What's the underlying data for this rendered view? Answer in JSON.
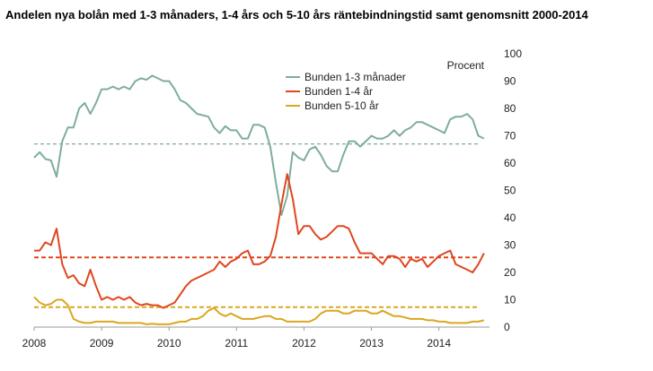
{
  "chart_data": {
    "type": "line",
    "title": "Andelen nya bolån med 1-3 månaders, 1-4 års och 5-10 års räntebindningstid samt genomsnitt 2000-2014",
    "ylabel": "Procent",
    "xlabel": "",
    "ylim": [
      0,
      100
    ],
    "yticks": [
      "0",
      "10",
      "20",
      "30",
      "40",
      "50",
      "60",
      "70",
      "80",
      "90",
      "100"
    ],
    "xlim": [
      2008.0,
      2014.75
    ],
    "xticks": [
      "2008",
      "2009",
      "2010",
      "2011",
      "2012",
      "2013",
      "2014"
    ],
    "grid": false,
    "legend_position": "top-center",
    "series": [
      {
        "name": "Bunden 1-3 månader",
        "color": "#7fad9d",
        "average": 67,
        "x": [
          2008.0,
          2008.083,
          2008.167,
          2008.25,
          2008.333,
          2008.417,
          2008.5,
          2008.583,
          2008.667,
          2008.75,
          2008.833,
          2008.917,
          2009.0,
          2009.083,
          2009.167,
          2009.25,
          2009.333,
          2009.417,
          2009.5,
          2009.583,
          2009.667,
          2009.75,
          2009.833,
          2009.917,
          2010.0,
          2010.083,
          2010.167,
          2010.25,
          2010.333,
          2010.417,
          2010.5,
          2010.583,
          2010.667,
          2010.75,
          2010.833,
          2010.917,
          2011.0,
          2011.083,
          2011.167,
          2011.25,
          2011.333,
          2011.417,
          2011.5,
          2011.583,
          2011.667,
          2011.75,
          2011.833,
          2011.917,
          2012.0,
          2012.083,
          2012.167,
          2012.25,
          2012.333,
          2012.417,
          2012.5,
          2012.583,
          2012.667,
          2012.75,
          2012.833,
          2012.917,
          2013.0,
          2013.083,
          2013.167,
          2013.25,
          2013.333,
          2013.417,
          2013.5,
          2013.583,
          2013.667,
          2013.75,
          2013.833,
          2013.917,
          2014.0,
          2014.083,
          2014.167,
          2014.25,
          2014.333,
          2014.417,
          2014.5,
          2014.583,
          2014.667
        ],
        "y": [
          62,
          64,
          61.5,
          61,
          55,
          68,
          73,
          73,
          80,
          82,
          78,
          82,
          87,
          87,
          88,
          87,
          88,
          87,
          90,
          91,
          90.5,
          92,
          91,
          90,
          90,
          87,
          83,
          82,
          80,
          78,
          77.5,
          77,
          73,
          71,
          73.5,
          72,
          72,
          69,
          69,
          74,
          74,
          73,
          66,
          53,
          41,
          48,
          64,
          62,
          61,
          65,
          66,
          63,
          59,
          57,
          57,
          63,
          68,
          68,
          66,
          68,
          70,
          69,
          69,
          70,
          72,
          70,
          72,
          73,
          75,
          75,
          74,
          73,
          72,
          71,
          76,
          77,
          77,
          78,
          76,
          70,
          69
        ]
      },
      {
        "name": "Bunden 1-4 år",
        "color": "#e0461f",
        "average": 25.5,
        "x": [
          2008.0,
          2008.083,
          2008.167,
          2008.25,
          2008.333,
          2008.417,
          2008.5,
          2008.583,
          2008.667,
          2008.75,
          2008.833,
          2008.917,
          2009.0,
          2009.083,
          2009.167,
          2009.25,
          2009.333,
          2009.417,
          2009.5,
          2009.583,
          2009.667,
          2009.75,
          2009.833,
          2009.917,
          2010.0,
          2010.083,
          2010.167,
          2010.25,
          2010.333,
          2010.417,
          2010.5,
          2010.583,
          2010.667,
          2010.75,
          2010.833,
          2010.917,
          2011.0,
          2011.083,
          2011.167,
          2011.25,
          2011.333,
          2011.417,
          2011.5,
          2011.583,
          2011.667,
          2011.75,
          2011.833,
          2011.917,
          2012.0,
          2012.083,
          2012.167,
          2012.25,
          2012.333,
          2012.417,
          2012.5,
          2012.583,
          2012.667,
          2012.75,
          2012.833,
          2012.917,
          2013.0,
          2013.083,
          2013.167,
          2013.25,
          2013.333,
          2013.417,
          2013.5,
          2013.583,
          2013.667,
          2013.75,
          2013.833,
          2013.917,
          2014.0,
          2014.083,
          2014.167,
          2014.25,
          2014.333,
          2014.417,
          2014.5,
          2014.583,
          2014.667
        ],
        "y": [
          28,
          28,
          31,
          30,
          36,
          23,
          18,
          19,
          16,
          15,
          21,
          15,
          10,
          11,
          10,
          11,
          10,
          11,
          9,
          8,
          8.5,
          8,
          8,
          7,
          8,
          9,
          12,
          15,
          17,
          18,
          19,
          20,
          21,
          24,
          22,
          24,
          25,
          27,
          28,
          23,
          23,
          24,
          26,
          33,
          45,
          56,
          47,
          34,
          37,
          37,
          34,
          32,
          33,
          35,
          37,
          37,
          36,
          31,
          27,
          27,
          27,
          25,
          23,
          26,
          26,
          25,
          22,
          25,
          24,
          25,
          22,
          24,
          26,
          27,
          28,
          23,
          22,
          21,
          20,
          23,
          27
        ]
      },
      {
        "name": "Bunden 5-10 år",
        "color": "#d9a820",
        "average": 7.3,
        "x": [
          2008.0,
          2008.083,
          2008.167,
          2008.25,
          2008.333,
          2008.417,
          2008.5,
          2008.583,
          2008.667,
          2008.75,
          2008.833,
          2008.917,
          2009.0,
          2009.083,
          2009.167,
          2009.25,
          2009.333,
          2009.417,
          2009.5,
          2009.583,
          2009.667,
          2009.75,
          2009.833,
          2009.917,
          2010.0,
          2010.083,
          2010.167,
          2010.25,
          2010.333,
          2010.417,
          2010.5,
          2010.583,
          2010.667,
          2010.75,
          2010.833,
          2010.917,
          2011.0,
          2011.083,
          2011.167,
          2011.25,
          2011.333,
          2011.417,
          2011.5,
          2011.583,
          2011.667,
          2011.75,
          2011.833,
          2011.917,
          2012.0,
          2012.083,
          2012.167,
          2012.25,
          2012.333,
          2012.417,
          2012.5,
          2012.583,
          2012.667,
          2012.75,
          2012.833,
          2012.917,
          2013.0,
          2013.083,
          2013.167,
          2013.25,
          2013.333,
          2013.417,
          2013.5,
          2013.583,
          2013.667,
          2013.75,
          2013.833,
          2013.917,
          2014.0,
          2014.083,
          2014.167,
          2014.25,
          2014.333,
          2014.417,
          2014.5,
          2014.583,
          2014.667
        ],
        "y": [
          11,
          9,
          8,
          8.5,
          10,
          10,
          8,
          3,
          2,
          1.5,
          1.5,
          2,
          2,
          2,
          2,
          1.5,
          1.5,
          1.5,
          1.5,
          1.5,
          1,
          1.2,
          1,
          1,
          1,
          1.5,
          2,
          2,
          3,
          3,
          4,
          6,
          7,
          5,
          4,
          5,
          4,
          3,
          3,
          3,
          3.5,
          4,
          4,
          3,
          3,
          2,
          2,
          2,
          2,
          2,
          3,
          5,
          6,
          6,
          6,
          5,
          5,
          6,
          6,
          6,
          5,
          5,
          6,
          5,
          4,
          4,
          3.5,
          3,
          3,
          3,
          2.5,
          2.5,
          2,
          2,
          1.5,
          1.5,
          1.5,
          1.5,
          2,
          2,
          2.5
        ]
      }
    ]
  }
}
